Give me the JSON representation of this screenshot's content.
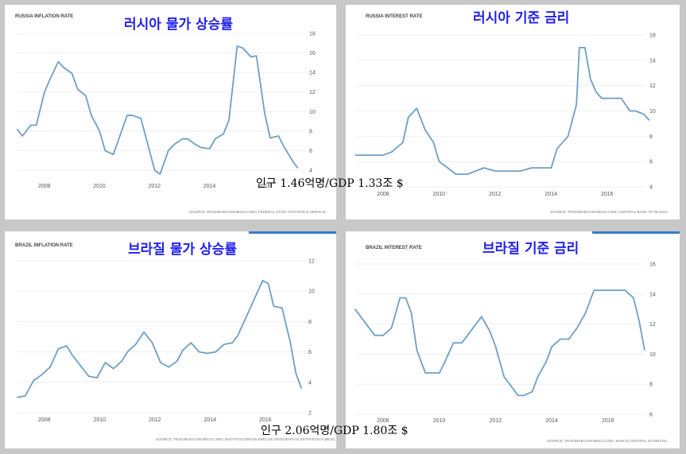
{
  "charts": [
    {
      "id": "russia_inflation",
      "small_title": "RUSSIA INFLATION RATE",
      "title": "러시아 물가 상승률",
      "source": "SOURCE: TRADINGECONOMICS.COM  |  FEDERAL STATE STATISTICS SERVICE",
      "y_ticks": [
        "18",
        "16",
        "14",
        "12",
        "10",
        "8",
        "6",
        "4"
      ],
      "x_ticks": [
        "2008",
        "2010",
        "2012",
        "2014",
        "2016"
      ]
    },
    {
      "id": "russia_interest",
      "small_title": "RUSSIA INTEREST RATE",
      "title": "러시아 기준 금리",
      "source": "SOURCE: TRADINGECONOMICS.COM  |  CENTRAL BANK OF RUSSIA",
      "y_ticks": [
        "16",
        "14",
        "12",
        "10",
        "8",
        "6",
        "4"
      ],
      "x_ticks": [
        "2008",
        "2010",
        "2012",
        "2014",
        "2016"
      ]
    },
    {
      "id": "brazil_inflation",
      "small_title": "BRAZIL INFLATION RATE",
      "title": "브라질 물가 상승률",
      "source": "SOURCE: TRADINGECONOMICS.COM  |  INSTITUTO BRASILEIRO DE GEOGRAFIA E ESTATÍSTICA (IBGE)",
      "y_ticks": [
        "12",
        "10",
        "8",
        "6",
        "4",
        "2"
      ],
      "x_ticks": [
        "2008",
        "2010",
        "2012",
        "2014",
        "2016"
      ]
    },
    {
      "id": "brazil_interest",
      "small_title": "BRAZIL INTEREST RATE",
      "title": "브라질 기준 금리",
      "source": "SOURCE: TRADINGECONOMICS.COM  |  BANCO CENTRAL DO BRASIL",
      "y_ticks": [
        "16",
        "14",
        "12",
        "10",
        "8",
        "6"
      ],
      "x_ticks": [
        "2008",
        "2010",
        "2012",
        "2014",
        "2016"
      ]
    }
  ],
  "annotations": {
    "russia_stat": "인구 1.46억명/GDP 1.33조 $",
    "brazil_stat": "인구 2.06억명/GDP 1.80조 $"
  },
  "chart_data": [
    {
      "type": "line",
      "title": "RUSSIA INFLATION RATE",
      "ylim": [
        4,
        18
      ],
      "xlim": [
        2007.0,
        2017.5
      ],
      "x": [
        2007.0,
        2007.2,
        2007.5,
        2007.7,
        2008.0,
        2008.2,
        2008.5,
        2008.7,
        2009.0,
        2009.2,
        2009.5,
        2009.7,
        2010.0,
        2010.2,
        2010.5,
        2010.7,
        2011.0,
        2011.2,
        2011.5,
        2011.7,
        2012.0,
        2012.2,
        2012.5,
        2012.7,
        2013.0,
        2013.2,
        2013.5,
        2013.7,
        2014.0,
        2014.2,
        2014.5,
        2014.7,
        2015.0,
        2015.2,
        2015.5,
        2015.7,
        2016.0,
        2016.2,
        2016.5,
        2016.7,
        2017.0,
        2017.2
      ],
      "series": [
        {
          "values": [
            8.2,
            7.5,
            8.6,
            8.6,
            12.0,
            13.3,
            15.1,
            14.5,
            13.9,
            12.3,
            11.6,
            9.6,
            8.0,
            6.0,
            5.6,
            7.2,
            9.6,
            9.6,
            9.3,
            7.2,
            4.0,
            3.6,
            6.0,
            6.6,
            7.2,
            7.2,
            6.6,
            6.3,
            6.2,
            7.2,
            7.7,
            9.1,
            16.7,
            16.5,
            15.6,
            15.7,
            9.8,
            7.3,
            7.5,
            6.4,
            5.0,
            4.2
          ]
        }
      ]
    },
    {
      "type": "line",
      "title": "RUSSIA INTEREST RATE",
      "ylim": [
        4,
        16
      ],
      "xlim": [
        2007.0,
        2017.5
      ],
      "x": [
        2007.0,
        2007.5,
        2008.0,
        2008.3,
        2008.7,
        2008.9,
        2009.2,
        2009.5,
        2009.8,
        2010.0,
        2010.3,
        2010.6,
        2011.0,
        2011.3,
        2011.6,
        2012.0,
        2012.5,
        2012.9,
        2013.3,
        2013.7,
        2014.0,
        2014.2,
        2014.4,
        2014.6,
        2014.9,
        2015.0,
        2015.2,
        2015.4,
        2015.6,
        2015.8,
        2016.0,
        2016.5,
        2016.8,
        2017.0,
        2017.3,
        2017.5
      ],
      "series": [
        {
          "values": [
            6.5,
            6.5,
            6.5,
            6.75,
            7.5,
            9.5,
            10.2,
            8.5,
            7.5,
            6.0,
            5.5,
            5.0,
            5.0,
            5.25,
            5.5,
            5.25,
            5.25,
            5.25,
            5.5,
            5.5,
            5.5,
            7.0,
            7.5,
            8.0,
            10.5,
            15.0,
            15.0,
            12.5,
            11.5,
            11.0,
            11.0,
            11.0,
            10.0,
            10.0,
            9.75,
            9.25
          ]
        }
      ]
    },
    {
      "type": "line",
      "title": "BRAZIL INFLATION RATE",
      "ylim": [
        2,
        12
      ],
      "xlim": [
        2007.0,
        2017.5
      ],
      "x": [
        2007.0,
        2007.3,
        2007.6,
        2007.9,
        2008.2,
        2008.5,
        2008.8,
        2009.0,
        2009.3,
        2009.6,
        2009.9,
        2010.2,
        2010.5,
        2010.8,
        2011.0,
        2011.3,
        2011.6,
        2011.9,
        2012.2,
        2012.5,
        2012.8,
        2013.0,
        2013.3,
        2013.6,
        2013.9,
        2014.2,
        2014.5,
        2014.8,
        2015.0,
        2015.3,
        2015.6,
        2015.9,
        2016.1,
        2016.3,
        2016.6,
        2016.9,
        2017.1,
        2017.3
      ],
      "series": [
        {
          "values": [
            3.0,
            3.1,
            4.1,
            4.5,
            5.0,
            6.2,
            6.4,
            5.8,
            5.1,
            4.4,
            4.3,
            5.3,
            4.9,
            5.4,
            6.0,
            6.5,
            7.3,
            6.6,
            5.3,
            5.0,
            5.4,
            6.1,
            6.6,
            6.0,
            5.9,
            6.0,
            6.5,
            6.6,
            7.1,
            8.3,
            9.5,
            10.7,
            10.5,
            9.0,
            8.9,
            6.6,
            4.6,
            3.6
          ]
        }
      ]
    },
    {
      "type": "line",
      "title": "BRAZIL INTEREST RATE",
      "ylim": [
        6,
        16
      ],
      "xlim": [
        2007.0,
        2017.5
      ],
      "x": [
        2007.0,
        2007.2,
        2007.5,
        2007.7,
        2008.0,
        2008.3,
        2008.6,
        2008.8,
        2009.0,
        2009.2,
        2009.5,
        2010.0,
        2010.2,
        2010.5,
        2010.8,
        2011.0,
        2011.3,
        2011.5,
        2011.8,
        2012.0,
        2012.3,
        2012.5,
        2012.8,
        2013.0,
        2013.3,
        2013.5,
        2013.8,
        2014.0,
        2014.3,
        2014.6,
        2014.9,
        2015.2,
        2015.5,
        2015.7,
        2016.0,
        2016.3,
        2016.6,
        2016.9,
        2017.1,
        2017.3
      ],
      "series": [
        {
          "values": [
            13.0,
            12.5,
            11.75,
            11.25,
            11.25,
            11.75,
            13.75,
            13.75,
            12.75,
            10.25,
            8.75,
            8.75,
            9.5,
            10.75,
            10.75,
            11.25,
            12.0,
            12.5,
            11.5,
            10.5,
            8.5,
            8.0,
            7.25,
            7.25,
            7.5,
            8.5,
            9.5,
            10.5,
            11.0,
            11.0,
            11.75,
            12.75,
            14.25,
            14.25,
            14.25,
            14.25,
            14.25,
            13.75,
            12.25,
            10.25
          ]
        }
      ]
    }
  ]
}
